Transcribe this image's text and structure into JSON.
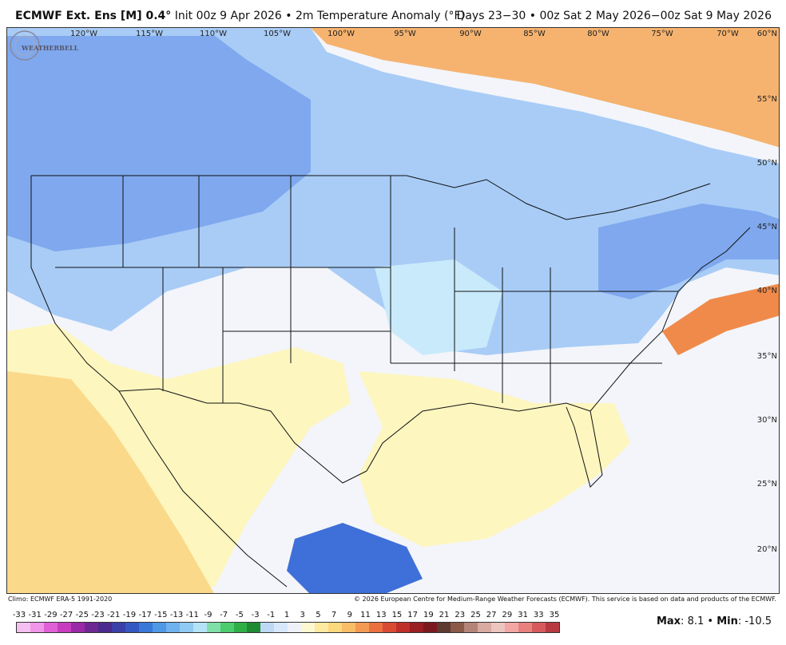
{
  "header": {
    "model": "ECMWF Ext. Ens [M] 0.4",
    "degree": "°",
    "init_text": " Init 00z 9 Apr 2026 • 2m Temperature Anomaly (°F)",
    "valid_text": "Days 23−30 • 00z Sat 2 May 2026−00z Sat 9 May 2026"
  },
  "map": {
    "lon_labels": [
      "120°W",
      "115°W",
      "110°W",
      "105°W",
      "100°W",
      "95°W",
      "90°W",
      "85°W",
      "80°W",
      "75°W",
      "70°W"
    ],
    "lat_labels": [
      "60°N",
      "55°N",
      "50°N",
      "45°N",
      "40°N",
      "35°N",
      "30°N",
      "25°N",
      "20°N"
    ],
    "colors": {
      "cold_strong": "#3f6fd8",
      "cold": "#7fa8ee",
      "cool": "#a8ccf6",
      "slightly_cool": "#c9eafb",
      "neutral": "#f3f5fa",
      "slightly_warm": "#fdf6bf",
      "warm": "#fbd98a",
      "hot": "#f6b36f",
      "hotter": "#f08a4a"
    }
  },
  "logo": {
    "text": "WEATHERBELL"
  },
  "footer": {
    "climo": "Climo: ECMWF ERA-5 1991-2020",
    "copyright": "© 2026 European Centre for Medium-Range Weather Forecasts (ECMWF). This service is based on data and products of the ECMWF."
  },
  "scale": {
    "ticks": [
      "-33",
      "-31",
      "-29",
      "-27",
      "-25",
      "-23",
      "-21",
      "-19",
      "-17",
      "-15",
      "-13",
      "-11",
      "-9",
      "-7",
      "-5",
      "-3",
      "-1",
      "1",
      "3",
      "5",
      "7",
      "9",
      "11",
      "13",
      "15",
      "17",
      "19",
      "21",
      "23",
      "25",
      "27",
      "29",
      "31",
      "33",
      "35"
    ],
    "colors": [
      "#f5c0f0",
      "#ef96e9",
      "#e060d8",
      "#c83cbf",
      "#9a2aa5",
      "#6e2891",
      "#4a2a8c",
      "#3b3fa8",
      "#3458c0",
      "#3a78d8",
      "#4e98e6",
      "#6fb2ee",
      "#8fcaf2",
      "#b4e2f6",
      "#7ee0a8",
      "#4ccc6e",
      "#2fae47",
      "#1f8a34",
      "#bcd8f4",
      "#d8e8fa",
      "#eef2f8",
      "#fdf8d0",
      "#fdeaa0",
      "#fbd77e",
      "#f8bd66",
      "#f39a52",
      "#ea7040",
      "#d94a33",
      "#bf2f2a",
      "#9a1f22",
      "#7a1a1e",
      "#5e3a30",
      "#8a5a48",
      "#b58478",
      "#d8aaa2",
      "#ecc4c0",
      "#f3a7a4",
      "#e8807e",
      "#d65a5c",
      "#b83a40"
    ]
  },
  "stats": {
    "max_label": "Max",
    "max_value": "8.1",
    "sep": " • ",
    "min_label": "Min",
    "min_value": "-10.5"
  }
}
